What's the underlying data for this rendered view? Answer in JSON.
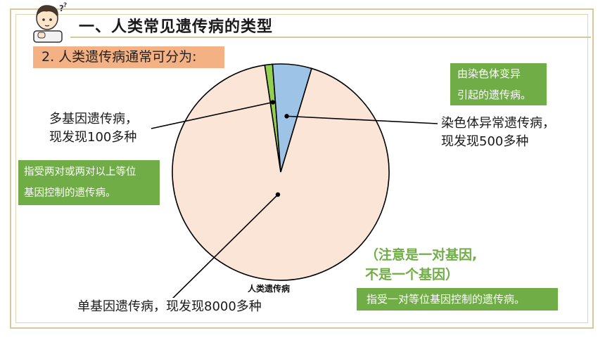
{
  "header": {
    "title": "一、人类常见遗传病的类型",
    "subtitle": "2. 人类遗传病通常可分为:"
  },
  "labels": {
    "polygenic_line1": "多基因遗传病，",
    "polygenic_line2": "现发现100多种",
    "chromosomal_line1": "染色体异常遗传病，",
    "chromosomal_line2": "现发现500多种",
    "monogenic": "单基因遗传病，现发现8000多种"
  },
  "definitions": {
    "chromosomal_line1": "由染色体变异",
    "chromosomal_line2": "引起的遗传病。",
    "polygenic_line1": "指受两对或两对以上等位",
    "polygenic_line2": "基因控制的遗传病。",
    "monogenic": "指受一对等位基因控制的遗传病。"
  },
  "note": {
    "line1": "（注意是一对基因,",
    "line2": "不是一个基因）"
  },
  "colors": {
    "monogenic": "#fbe5d6",
    "chromosomal": "#9dc3e6",
    "polygenic": "#92d050",
    "accent_green": "#70ad47",
    "subtitle_bg": "#f4b183"
  },
  "chart_data": {
    "type": "pie",
    "title": "人类遗传病",
    "categories": [
      "单基因遗传病",
      "染色体异常遗传病",
      "多基因遗传病"
    ],
    "values": [
      8000,
      500,
      100
    ]
  }
}
